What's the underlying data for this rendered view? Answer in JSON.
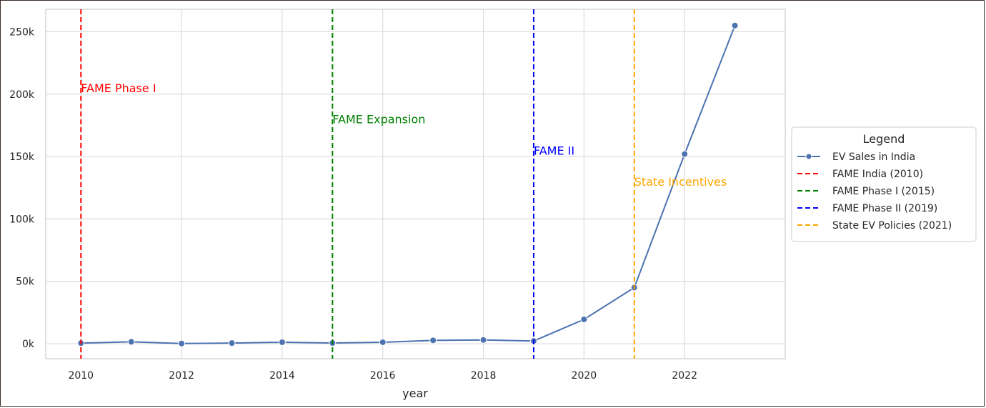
{
  "chart_data": {
    "type": "line",
    "xlabel": "year",
    "ylabel": "",
    "x_ticks": [
      "2010",
      "2012",
      "2014",
      "2016",
      "2018",
      "2020",
      "2022"
    ],
    "y_ticks": [
      "0k",
      "50k",
      "100k",
      "150k",
      "200k",
      "250k"
    ],
    "xlim": [
      2009.3,
      2024.0
    ],
    "ylim": [
      -12000,
      268000
    ],
    "grid": true,
    "legend_placement": "right, outside plot",
    "series": [
      {
        "name": "EV Sales in India",
        "color": "#4c72b0",
        "marker": "circle",
        "x": [
          2010,
          2011,
          2012,
          2013,
          2014,
          2015,
          2016,
          2017,
          2018,
          2019,
          2020,
          2021,
          2022,
          2023
        ],
        "y": [
          500,
          1500,
          200,
          500,
          1200,
          600,
          1200,
          2700,
          3000,
          2200,
          19500,
          45000,
          152000,
          255000
        ]
      }
    ],
    "vlines": [
      {
        "name": "FAME India (2010)",
        "x": 2010,
        "color": "#ff0000",
        "annotation": "FAME Phase I",
        "annotation_y": 205000
      },
      {
        "name": "FAME Phase I (2015)",
        "x": 2015,
        "color": "#008000",
        "annotation": "FAME Expansion",
        "annotation_y": 180000
      },
      {
        "name": "FAME Phase II (2019)",
        "x": 2019,
        "color": "#0000ff",
        "annotation": "FAME II",
        "annotation_y": 155000
      },
      {
        "name": "State EV Policies (2021)",
        "x": 2021,
        "color": "#ffa500",
        "annotation": "State Incentives",
        "annotation_y": 130000
      }
    ],
    "legend": {
      "title": "Legend",
      "entries": [
        "EV Sales in India",
        "FAME India (2010)",
        "FAME Phase I (2015)",
        "FAME Phase II (2019)",
        "State EV Policies (2021)"
      ]
    }
  }
}
